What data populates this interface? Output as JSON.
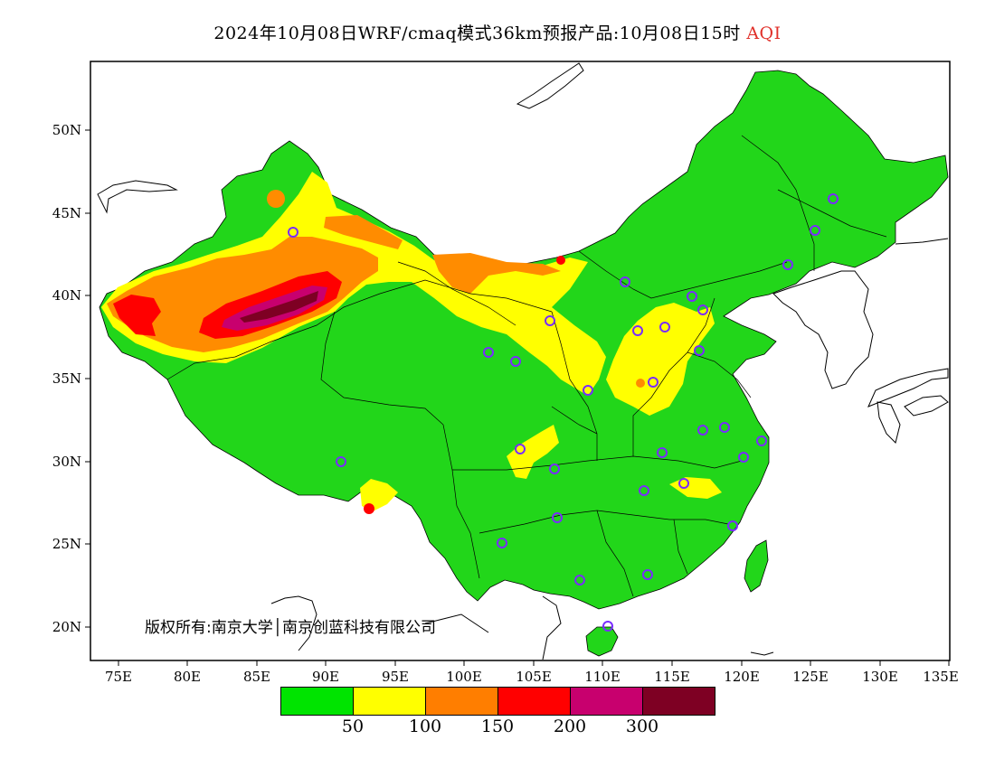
{
  "title": {
    "main": "2024年10月08日WRF/cmaq模式36km预报产品:10月08日15时",
    "variable": "AQI"
  },
  "axes": {
    "lat_labels": [
      "50N",
      "45N",
      "40N",
      "35N",
      "30N",
      "25N",
      "20N"
    ],
    "lon_labels": [
      "75E",
      "80E",
      "85E",
      "90E",
      "95E",
      "100E",
      "105E",
      "110E",
      "115E",
      "120E",
      "125E",
      "130E",
      "135E"
    ]
  },
  "legend": {
    "colors": [
      "#00e400",
      "#ffff00",
      "#ff7e00",
      "#ff0000",
      "#c8006e",
      "#7e0023"
    ],
    "labels": [
      "50",
      "100",
      "150",
      "200",
      "300"
    ]
  },
  "credit": "版权所有:南京大学│南京创蓝科技有限公司",
  "colors": {
    "good": "#00e400",
    "moderate": "#ffff00",
    "usg": "#ff7e00",
    "unhealthy": "#ff0000",
    "very_unhealthy": "#c8006e",
    "hazardous": "#7e0023",
    "station_marker": "#7a2cff"
  }
}
